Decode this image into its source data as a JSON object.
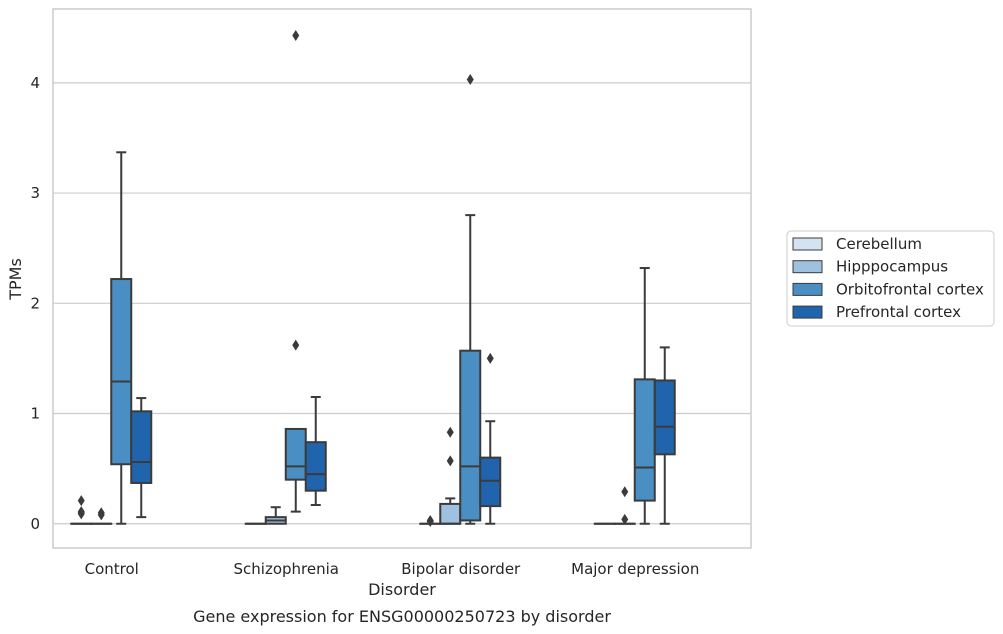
{
  "chart_data": {
    "type": "box",
    "caption": "Gene expression for ENSG00000250723 by disorder",
    "xlabel": "Disorder",
    "ylabel": "TPMs",
    "ylim": [
      -0.22,
      4.67
    ],
    "yticks": [
      0,
      1,
      2,
      3,
      4
    ],
    "grid": true,
    "legend_position": "right",
    "categories": [
      "Control",
      "Schizophrenia",
      "Bipolar disorder",
      "Major depression"
    ],
    "series": [
      {
        "name": "Cerebellum",
        "color": "#d4e3f2",
        "boxes": [
          {
            "q1": 0,
            "median": 0,
            "q3": 0,
            "whisker_low": 0,
            "whisker_high": 0,
            "outliers": [
              0.1,
              0.21,
              0.11,
              0.09
            ]
          },
          {
            "q1": 0,
            "median": 0,
            "q3": 0,
            "whisker_low": 0,
            "whisker_high": 0,
            "outliers": []
          },
          {
            "q1": 0,
            "median": 0,
            "q3": 0,
            "whisker_low": 0,
            "whisker_high": 0,
            "outliers": [
              0.03,
              0.02
            ]
          },
          {
            "q1": 0,
            "median": 0,
            "q3": 0,
            "whisker_low": 0,
            "whisker_high": 0,
            "outliers": []
          }
        ]
      },
      {
        "name": "Hipppocampus",
        "color": "#9dc1de",
        "boxes": [
          {
            "q1": 0,
            "median": 0,
            "q3": 0,
            "whisker_low": 0,
            "whisker_high": 0,
            "outliers": [
              0.1,
              0.08
            ]
          },
          {
            "q1": 0,
            "median": 0.03,
            "q3": 0.06,
            "whisker_low": 0,
            "whisker_high": 0.15,
            "outliers": []
          },
          {
            "q1": 0,
            "median": 0,
            "q3": 0.18,
            "whisker_low": 0,
            "whisker_high": 0.23,
            "outliers": [
              0.83,
              0.57
            ]
          },
          {
            "q1": 0,
            "median": 0,
            "q3": 0,
            "whisker_low": 0,
            "whisker_high": 0,
            "outliers": [
              0.29,
              0.04
            ]
          }
        ]
      },
      {
        "name": "Orbitofrontal cortex",
        "color": "#4a8fc4",
        "boxes": [
          {
            "q1": 0.54,
            "median": 1.29,
            "q3": 2.22,
            "whisker_low": 0,
            "whisker_high": 3.37,
            "outliers": []
          },
          {
            "q1": 0.4,
            "median": 0.52,
            "q3": 0.86,
            "whisker_low": 0.11,
            "whisker_high": 0.86,
            "outliers": [
              4.43,
              1.62
            ]
          },
          {
            "q1": 0.03,
            "median": 0.52,
            "q3": 1.57,
            "whisker_low": 0,
            "whisker_high": 2.8,
            "outliers": [
              4.03
            ]
          },
          {
            "q1": 0.21,
            "median": 0.51,
            "q3": 1.31,
            "whisker_low": 0,
            "whisker_high": 2.32,
            "outliers": []
          }
        ]
      },
      {
        "name": "Prefrontal cortex",
        "color": "#1f64ad",
        "boxes": [
          {
            "q1": 0.37,
            "median": 0.56,
            "q3": 1.02,
            "whisker_low": 0.06,
            "whisker_high": 1.14,
            "outliers": []
          },
          {
            "q1": 0.3,
            "median": 0.45,
            "q3": 0.74,
            "whisker_low": 0.17,
            "whisker_high": 1.15,
            "outliers": []
          },
          {
            "q1": 0.16,
            "median": 0.39,
            "q3": 0.6,
            "whisker_low": 0,
            "whisker_high": 0.93,
            "outliers": [
              1.5
            ]
          },
          {
            "q1": 0.63,
            "median": 0.88,
            "q3": 1.3,
            "whisker_low": 0,
            "whisker_high": 1.6,
            "outliers": []
          }
        ]
      }
    ]
  }
}
